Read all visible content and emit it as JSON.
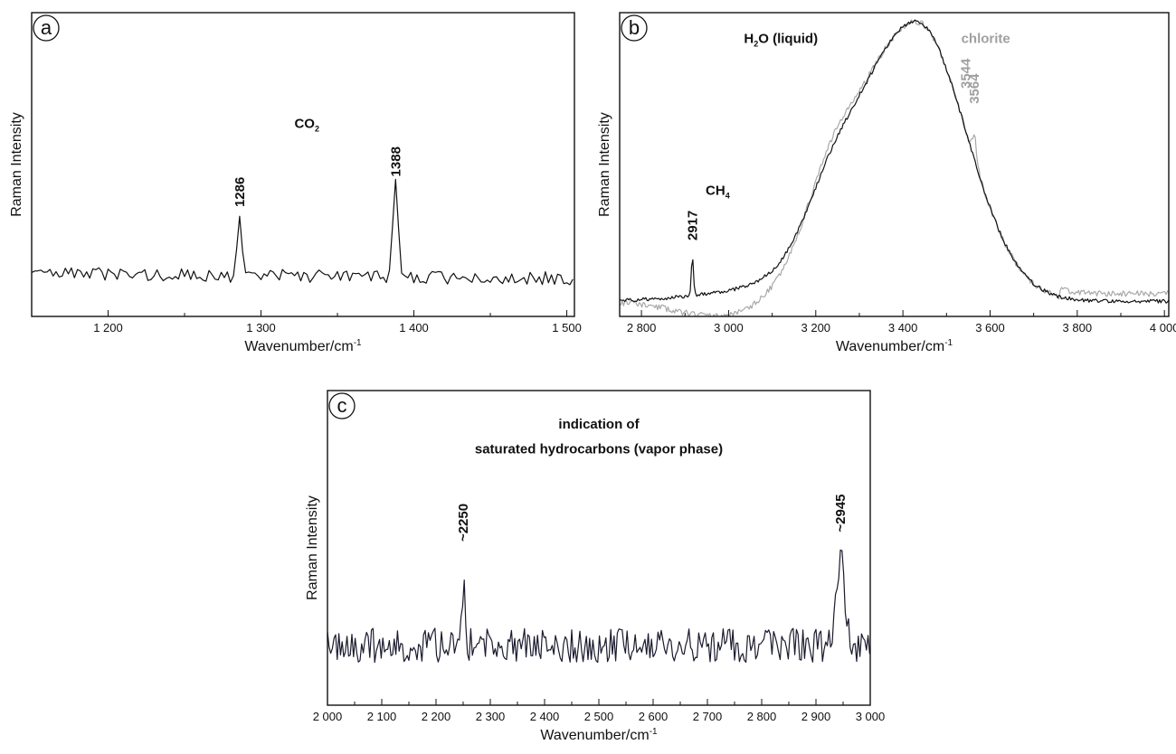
{
  "chart_data": [
    {
      "panel": "a",
      "type": "line",
      "xlabel": "Wavenumber/cm",
      "xlabel_sup": "-1",
      "ylabel": "Raman Intensity",
      "xlim": [
        1150,
        1505
      ],
      "ylim": [
        0,
        100
      ],
      "xticks": [
        1200,
        1300,
        1400,
        1500
      ],
      "xtick_labels": [
        "1 200",
        "1 300",
        "1 400",
        "1 500"
      ],
      "series": [
        {
          "color": "#111111",
          "shape": "noisy",
          "baseline": 14,
          "noise": 2.2,
          "decay": 1.5,
          "seed": 3,
          "step": 2,
          "peaks": [
            {
              "x": 1286,
              "h": 20,
              "w": 1.5
            },
            {
              "x": 1388,
              "h": 30,
              "w": 1.8
            }
          ]
        }
      ],
      "annotations": [
        {
          "text": "CO",
          "sub": "2",
          "x": 1330,
          "y": 62,
          "style": "ann"
        },
        {
          "text": "1286",
          "x": 1286,
          "y": 36,
          "style": "ann",
          "rotate": true
        },
        {
          "text": "1388",
          "x": 1388,
          "y": 46,
          "style": "ann",
          "rotate": true
        }
      ]
    },
    {
      "panel": "b",
      "type": "line",
      "xlabel": "Wavenumber/cm",
      "xlabel_sup": "-1",
      "ylabel": "Raman Intensity",
      "xlim": [
        2750,
        4010
      ],
      "ylim": [
        0,
        100
      ],
      "xticks": [
        2800,
        3000,
        3200,
        3400,
        3600,
        3800,
        4000
      ],
      "xtick_labels": [
        "2 800",
        "3 000",
        "3 200",
        "3 400",
        "3 600",
        "3 800",
        "4 000"
      ],
      "series": [
        {
          "color": "#a8a8a8",
          "shape": "water",
          "variant": "gray",
          "noise": 1.0,
          "seed": 11,
          "step": 3,
          "peaks": [
            {
              "x": 3564,
              "h": 8,
              "w": 5
            }
          ]
        },
        {
          "color": "#111111",
          "shape": "water",
          "variant": "black",
          "noise": 0.6,
          "seed": 5,
          "step": 3,
          "peaks": [
            {
              "x": 2917,
              "h": 13,
              "w": 2.5
            }
          ]
        }
      ],
      "annotations": [
        {
          "text": "H",
          "sub": "2",
          "tail": "O (liquid)",
          "x": 3120,
          "y": 90,
          "style": "ann"
        },
        {
          "text": "CH",
          "sub": "4",
          "x": 2975,
          "y": 40,
          "style": "ann"
        },
        {
          "text": "2917",
          "x": 2917,
          "y": 25,
          "style": "ann",
          "rotate": true
        },
        {
          "text": "chlorite",
          "x": 3590,
          "y": 90,
          "style": "ann-gray"
        },
        {
          "text": "3544",
          "x": 3544,
          "y": 75,
          "style": "ann-gray",
          "rotate": true
        },
        {
          "text": "3564",
          "x": 3564,
          "y": 70,
          "style": "ann-gray",
          "rotate": true
        }
      ]
    },
    {
      "panel": "c",
      "type": "line",
      "xlabel": "Wavenumber/cm",
      "xlabel_sup": "-1",
      "ylabel": "Raman Intensity",
      "xlim": [
        2000,
        3000
      ],
      "ylim": [
        0,
        100
      ],
      "xticks": [
        2000,
        2100,
        2200,
        2300,
        2400,
        2500,
        2600,
        2700,
        2800,
        2900,
        3000
      ],
      "xtick_labels": [
        "2 000",
        "2 100",
        "2 200",
        "2 300",
        "2 400",
        "2 500",
        "2 600",
        "2 700",
        "2 800",
        "2 900",
        "3 000"
      ],
      "series": [
        {
          "color": "#1a1a2e",
          "shape": "noisy",
          "baseline": 19,
          "noise": 5.5,
          "decay": 0,
          "seed": 7,
          "step": 3,
          "peaks": [
            {
              "x": 2250,
              "h": 18,
              "w": 4
            },
            {
              "x": 2945,
              "h": 27,
              "w": 8
            }
          ]
        }
      ],
      "annotations": [
        {
          "text": "indication of",
          "x": 2500,
          "y": 88,
          "style": "ann"
        },
        {
          "text": "saturated hydrocarbons (vapor phase)",
          "x": 2500,
          "y": 80,
          "style": "ann"
        },
        {
          "text": "~2250",
          "x": 2250,
          "y": 52,
          "style": "ann",
          "rotate": true
        },
        {
          "text": "~2945",
          "x": 2945,
          "y": 55,
          "style": "ann",
          "rotate": true
        }
      ]
    }
  ]
}
